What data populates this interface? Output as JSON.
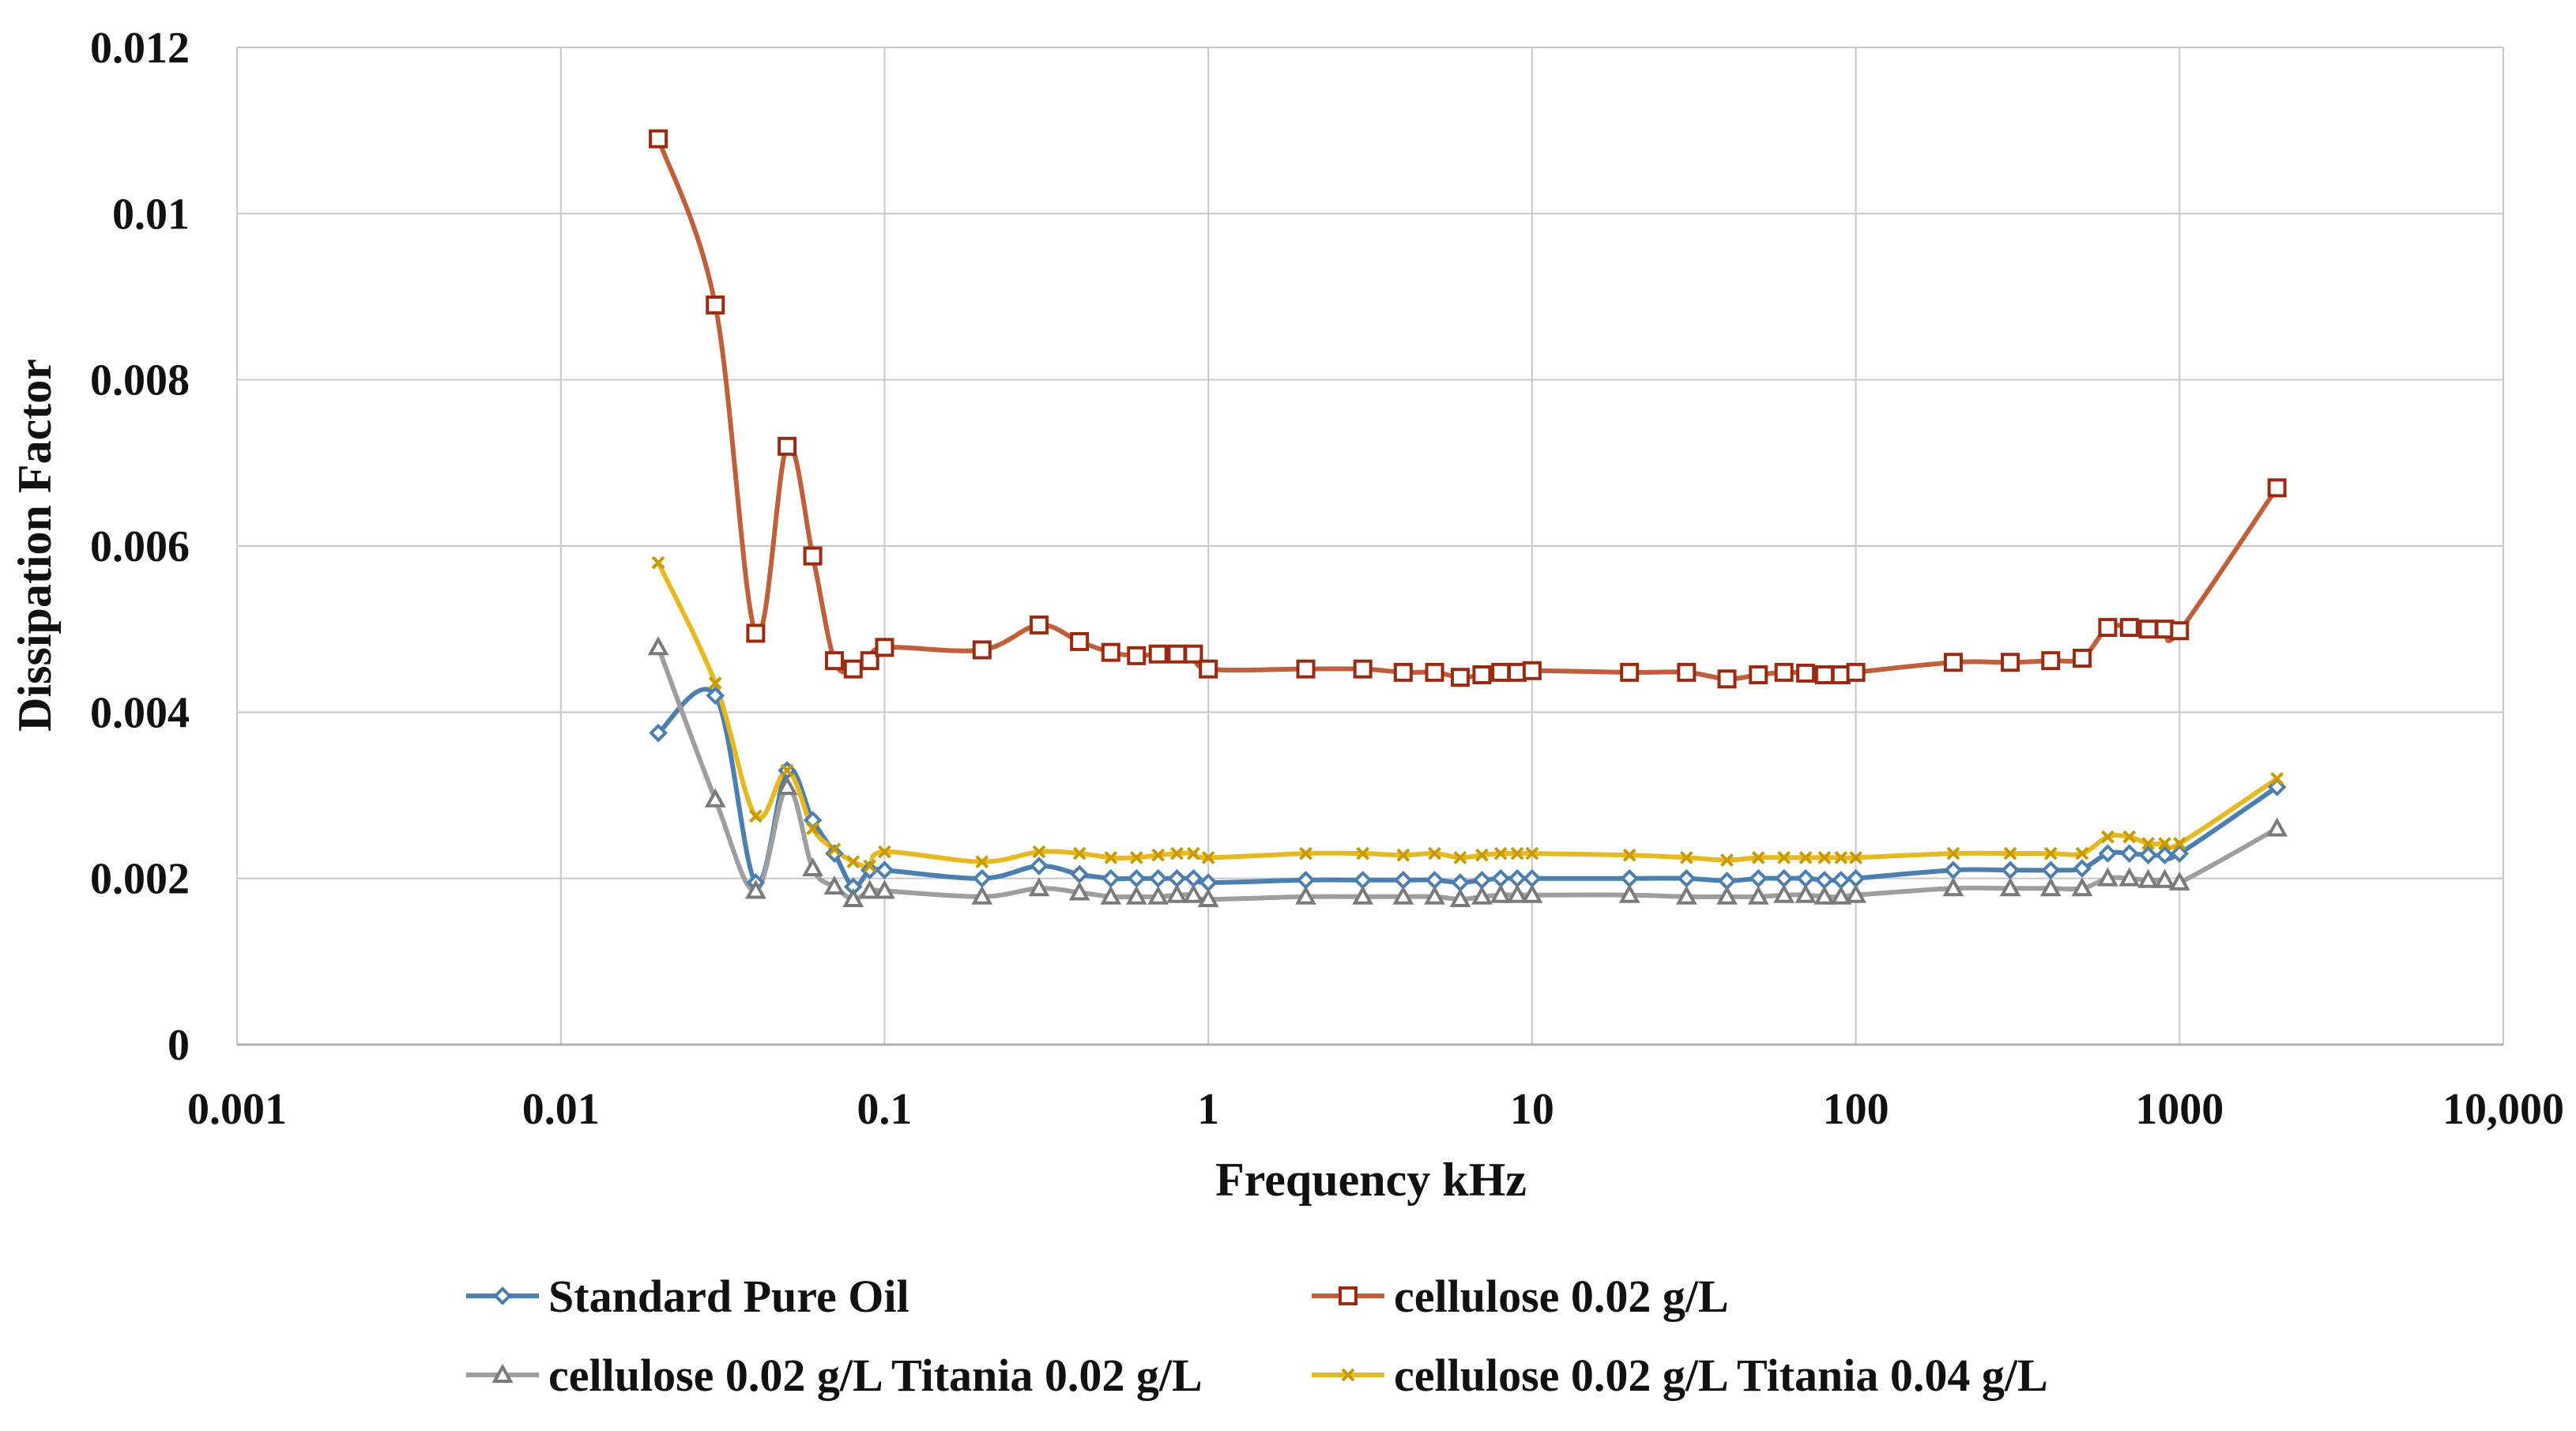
{
  "chart_data": {
    "type": "line",
    "title": "",
    "xlabel": "Frequency kHz",
    "ylabel": "Dissipation Factor",
    "xscale": "log",
    "xlim": [
      0.001,
      10000
    ],
    "ylim": [
      0,
      0.012
    ],
    "grid": true,
    "legend_position": "bottom",
    "x_tick_labels": [
      "0.001",
      "0.01",
      "0.1",
      "1",
      "10",
      "100",
      "1000",
      "10,000"
    ],
    "y_tick_labels": [
      "0",
      "0.002",
      "0.004",
      "0.006",
      "0.008",
      "0.01",
      "0.012"
    ],
    "x": [
      0.02,
      0.03,
      0.04,
      0.05,
      0.06,
      0.07,
      0.08,
      0.09,
      0.1,
      0.2,
      0.3,
      0.4,
      0.5,
      0.6,
      0.7,
      0.8,
      0.9,
      1,
      2,
      3,
      4,
      5,
      6,
      7,
      8,
      9,
      10,
      20,
      30,
      40,
      50,
      60,
      70,
      80,
      90,
      100,
      200,
      300,
      400,
      500,
      600,
      700,
      800,
      900,
      1000,
      2000
    ],
    "series": [
      {
        "name": "Standard Pure Oil",
        "color": "#4a7fb0",
        "marker": "diamond",
        "values": [
          0.00375,
          0.0042,
          0.00195,
          0.0033,
          0.0027,
          0.0023,
          0.0019,
          0.0021,
          0.0021,
          0.002,
          0.00215,
          0.00205,
          0.002,
          0.002,
          0.002,
          0.002,
          0.002,
          0.00195,
          0.00198,
          0.00198,
          0.00198,
          0.00198,
          0.00195,
          0.00198,
          0.002,
          0.002,
          0.002,
          0.002,
          0.002,
          0.00197,
          0.002,
          0.002,
          0.002,
          0.00198,
          0.00198,
          0.002,
          0.0021,
          0.0021,
          0.0021,
          0.00212,
          0.0023,
          0.0023,
          0.00228,
          0.00228,
          0.0023,
          0.0031
        ]
      },
      {
        "name": "cellulose 0.02 g/L",
        "color": "#c0603a",
        "marker": "square",
        "values": [
          0.0109,
          0.0089,
          0.00495,
          0.0072,
          0.00588,
          0.00462,
          0.00452,
          0.00462,
          0.00478,
          0.00475,
          0.00505,
          0.00485,
          0.00472,
          0.00468,
          0.0047,
          0.0047,
          0.0047,
          0.00452,
          0.00452,
          0.00452,
          0.00448,
          0.00448,
          0.00442,
          0.00445,
          0.00448,
          0.00448,
          0.0045,
          0.00448,
          0.00448,
          0.0044,
          0.00445,
          0.00448,
          0.00447,
          0.00445,
          0.00445,
          0.00448,
          0.0046,
          0.0046,
          0.00462,
          0.00465,
          0.00502,
          0.00502,
          0.005,
          0.005,
          0.00498,
          0.0067
        ]
      },
      {
        "name": "cellulose 0.02 g/L Titania 0.02 g/L",
        "color": "#9e9e9e",
        "marker": "triangle",
        "values": [
          0.00478,
          0.00295,
          0.00185,
          0.0031,
          0.00212,
          0.0019,
          0.00175,
          0.00185,
          0.00185,
          0.00178,
          0.00188,
          0.00183,
          0.00178,
          0.00178,
          0.00178,
          0.0018,
          0.0018,
          0.00175,
          0.00178,
          0.00178,
          0.00178,
          0.00178,
          0.00175,
          0.00178,
          0.0018,
          0.0018,
          0.0018,
          0.0018,
          0.00178,
          0.00178,
          0.00178,
          0.0018,
          0.0018,
          0.00178,
          0.00178,
          0.0018,
          0.00188,
          0.00188,
          0.00188,
          0.00188,
          0.002,
          0.002,
          0.00198,
          0.00198,
          0.00195,
          0.0026
        ]
      },
      {
        "name": "cellulose 0.02 g/L Titania 0.04 g/L",
        "color": "#e8b820",
        "marker": "x",
        "values": [
          0.0058,
          0.00435,
          0.00275,
          0.0033,
          0.0026,
          0.00235,
          0.0022,
          0.00215,
          0.00232,
          0.0022,
          0.00232,
          0.0023,
          0.00225,
          0.00225,
          0.00228,
          0.0023,
          0.0023,
          0.00225,
          0.0023,
          0.0023,
          0.00228,
          0.0023,
          0.00225,
          0.00228,
          0.0023,
          0.0023,
          0.0023,
          0.00228,
          0.00225,
          0.00222,
          0.00225,
          0.00225,
          0.00225,
          0.00225,
          0.00225,
          0.00225,
          0.0023,
          0.0023,
          0.0023,
          0.0023,
          0.0025,
          0.0025,
          0.00242,
          0.00242,
          0.00242,
          0.0032
        ]
      }
    ]
  }
}
